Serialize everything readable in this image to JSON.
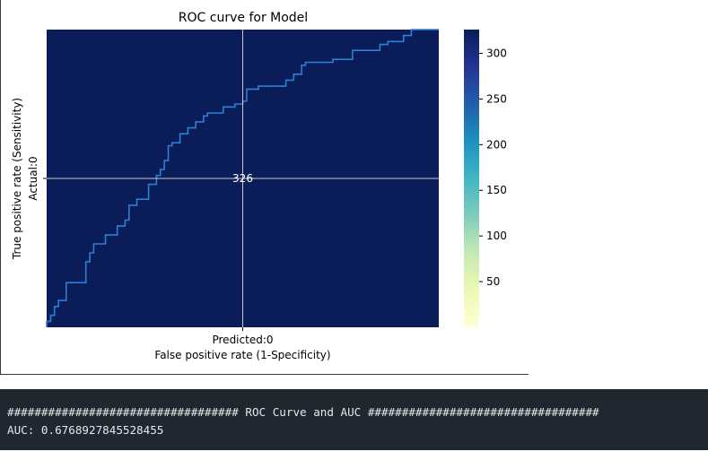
{
  "chart_data": {
    "type": "heatmap",
    "title": "ROC curve for Model",
    "xlabel_cell": "Predicted:0",
    "xlabel": "False positive rate (1-Specificity)",
    "ylabel": "True positive rate (Sensitivity)",
    "ylabel_cell": "Actual:0",
    "cell_annotation": "326",
    "cell_value": 326,
    "colorbar": {
      "colormap": "YlGnBu",
      "range": [
        0,
        326
      ],
      "ticks": [
        50,
        100,
        150,
        200,
        250,
        300
      ],
      "tick_labels": [
        "50",
        "100",
        "150",
        "200",
        "250",
        "300"
      ]
    },
    "roc_overlay": {
      "xlim": [
        0,
        1
      ],
      "ylim": [
        0,
        1
      ],
      "points": [
        [
          0.0,
          0.0
        ],
        [
          0.0,
          0.02
        ],
        [
          0.01,
          0.02
        ],
        [
          0.01,
          0.04
        ],
        [
          0.02,
          0.04
        ],
        [
          0.02,
          0.07
        ],
        [
          0.03,
          0.07
        ],
        [
          0.03,
          0.09
        ],
        [
          0.05,
          0.09
        ],
        [
          0.05,
          0.15
        ],
        [
          0.1,
          0.15
        ],
        [
          0.1,
          0.22
        ],
        [
          0.11,
          0.22
        ],
        [
          0.11,
          0.25
        ],
        [
          0.12,
          0.25
        ],
        [
          0.12,
          0.28
        ],
        [
          0.15,
          0.28
        ],
        [
          0.15,
          0.31
        ],
        [
          0.18,
          0.31
        ],
        [
          0.18,
          0.34
        ],
        [
          0.2,
          0.34
        ],
        [
          0.2,
          0.36
        ],
        [
          0.21,
          0.36
        ],
        [
          0.21,
          0.41
        ],
        [
          0.23,
          0.41
        ],
        [
          0.23,
          0.43
        ],
        [
          0.26,
          0.43
        ],
        [
          0.26,
          0.48
        ],
        [
          0.28,
          0.48
        ],
        [
          0.28,
          0.51
        ],
        [
          0.29,
          0.51
        ],
        [
          0.29,
          0.53
        ],
        [
          0.3,
          0.53
        ],
        [
          0.3,
          0.56
        ],
        [
          0.31,
          0.56
        ],
        [
          0.31,
          0.61
        ],
        [
          0.32,
          0.61
        ],
        [
          0.32,
          0.62
        ],
        [
          0.34,
          0.62
        ],
        [
          0.34,
          0.65
        ],
        [
          0.36,
          0.65
        ],
        [
          0.36,
          0.67
        ],
        [
          0.38,
          0.67
        ],
        [
          0.38,
          0.69
        ],
        [
          0.4,
          0.69
        ],
        [
          0.4,
          0.71
        ],
        [
          0.41,
          0.71
        ],
        [
          0.41,
          0.72
        ],
        [
          0.45,
          0.72
        ],
        [
          0.45,
          0.74
        ],
        [
          0.48,
          0.74
        ],
        [
          0.48,
          0.75
        ],
        [
          0.5,
          0.75
        ],
        [
          0.5,
          0.76
        ],
        [
          0.51,
          0.76
        ],
        [
          0.51,
          0.8
        ],
        [
          0.54,
          0.8
        ],
        [
          0.54,
          0.81
        ],
        [
          0.61,
          0.81
        ],
        [
          0.61,
          0.83
        ],
        [
          0.63,
          0.83
        ],
        [
          0.63,
          0.85
        ],
        [
          0.65,
          0.85
        ],
        [
          0.65,
          0.88
        ],
        [
          0.66,
          0.88
        ],
        [
          0.66,
          0.89
        ],
        [
          0.73,
          0.89
        ],
        [
          0.73,
          0.9
        ],
        [
          0.78,
          0.9
        ],
        [
          0.78,
          0.93
        ],
        [
          0.85,
          0.93
        ],
        [
          0.85,
          0.95
        ],
        [
          0.87,
          0.95
        ],
        [
          0.87,
          0.96
        ],
        [
          0.91,
          0.96
        ],
        [
          0.91,
          0.98
        ],
        [
          0.93,
          0.98
        ],
        [
          0.93,
          1.0
        ],
        [
          1.0,
          1.0
        ]
      ]
    },
    "grid": true,
    "colors": {
      "cell": "#0a1d58",
      "roc_line": "#2f7fd6",
      "grid": "#c8c8c8"
    }
  },
  "console": {
    "lines": [
      "################################## ROC Curve and AUC ##################################",
      "AUC: 0.6768927845528455"
    ]
  }
}
